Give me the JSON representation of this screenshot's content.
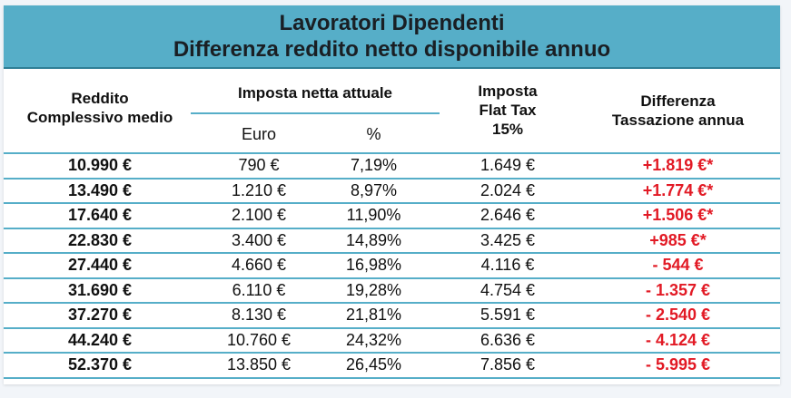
{
  "title": {
    "line1": "Lavoratori Dipendenti",
    "line2": "Differenza reddito netto disponibile annuo"
  },
  "headers": {
    "reddito_l1": "Reddito",
    "reddito_l2": "Complessivo medio",
    "imposta_attuale": "Imposta netta attuale",
    "euro": "Euro",
    "pct": "%",
    "flat_l1": "Imposta",
    "flat_l2": "Flat Tax",
    "flat_l3": "15%",
    "diff_l1": "Differenza",
    "diff_l2": "Tassazione annua"
  },
  "rows": [
    {
      "reddito": "10.990 €",
      "euro": "790 €",
      "pct": "7,19%",
      "flat": "1.649 €",
      "diff": "+1.819 €*"
    },
    {
      "reddito": "13.490 €",
      "euro": "1.210 €",
      "pct": "8,97%",
      "flat": "2.024 €",
      "diff": "+1.774 €*"
    },
    {
      "reddito": "17.640 €",
      "euro": "2.100 €",
      "pct": "11,90%",
      "flat": "2.646 €",
      "diff": "+1.506 €*"
    },
    {
      "reddito": "22.830 €",
      "euro": "3.400 €",
      "pct": "14,89%",
      "flat": "3.425 €",
      "diff": "+985 €*"
    },
    {
      "reddito": "27.440 €",
      "euro": "4.660 €",
      "pct": "16,98%",
      "flat": "4.116 €",
      "diff": "- 544 €"
    },
    {
      "reddito": "31.690 €",
      "euro": "6.110 €",
      "pct": "19,28%",
      "flat": "4.754 €",
      "diff": "- 1.357 €"
    },
    {
      "reddito": "37.270 €",
      "euro": "8.130 €",
      "pct": "21,81%",
      "flat": "5.591 €",
      "diff": "- 2.540 €"
    },
    {
      "reddito": "44.240 €",
      "euro": "10.760 €",
      "pct": "24,32%",
      "flat": "6.636 €",
      "diff": "- 4.124 €"
    },
    {
      "reddito": "52.370 €",
      "euro": "13.850 €",
      "pct": "26,45%",
      "flat": "7.856 €",
      "diff": "- 5.995 €"
    }
  ]
}
